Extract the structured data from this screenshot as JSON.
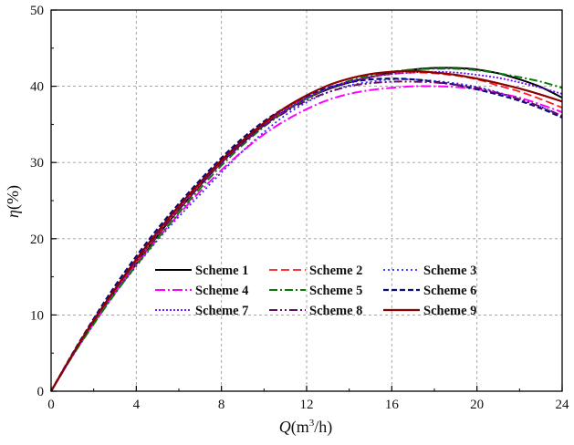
{
  "chart_data": {
    "type": "line",
    "title": "",
    "xlabel_italic": "Q",
    "xlabel_rest": "(m",
    "xlabel_sup": "3",
    "xlabel_tail": "/h)",
    "ylabel_italic": "η",
    "ylabel_rest": "(%)",
    "xlim": [
      0,
      24
    ],
    "ylim": [
      0,
      50
    ],
    "xticks": [
      0,
      4,
      8,
      12,
      16,
      20,
      24
    ],
    "yticks": [
      0,
      10,
      20,
      30,
      40,
      50
    ],
    "x": [
      0,
      1,
      2,
      3,
      4,
      5,
      6,
      7,
      8,
      9,
      10,
      11,
      12,
      13,
      14,
      15,
      16,
      17,
      18,
      19,
      20,
      21,
      22,
      23,
      24
    ],
    "grid": true,
    "legend_placement": "lower-center",
    "series": [
      {
        "name": "Scheme 1",
        "color": "#000000",
        "dash": "",
        "width": 2.0,
        "values": [
          0,
          4.7,
          9.0,
          13.0,
          16.7,
          20.4,
          23.8,
          27.0,
          30.0,
          32.6,
          34.9,
          36.8,
          38.4,
          39.6,
          40.5,
          41.2,
          41.8,
          42.2,
          42.4,
          42.4,
          42.2,
          41.7,
          40.9,
          39.9,
          38.5
        ]
      },
      {
        "name": "Scheme 2",
        "color": "#ff1a1a",
        "dash": "9,4",
        "width": 1.8,
        "values": [
          0,
          4.7,
          9.0,
          13.1,
          16.9,
          20.5,
          23.9,
          27.1,
          30.1,
          32.8,
          35.0,
          36.9,
          38.5,
          39.7,
          40.6,
          41.2,
          41.6,
          41.8,
          41.7,
          41.4,
          40.9,
          40.1,
          39.3,
          38.3,
          37.2
        ]
      },
      {
        "name": "Scheme 3",
        "color": "#2a2aff",
        "dash": "2,3",
        "width": 1.8,
        "values": [
          0,
          4.6,
          8.8,
          12.8,
          16.4,
          19.8,
          22.9,
          25.8,
          28.7,
          31.5,
          34.0,
          36.2,
          37.9,
          39.2,
          40.1,
          40.6,
          40.9,
          40.9,
          40.7,
          40.4,
          39.9,
          39.2,
          38.3,
          37.3,
          36.0
        ]
      },
      {
        "name": "Scheme 4",
        "color": "#ff00ff",
        "dash": "11,3,2,3",
        "width": 2.0,
        "values": [
          0,
          4.6,
          8.9,
          12.9,
          16.6,
          20.0,
          23.2,
          26.2,
          29.0,
          31.5,
          33.7,
          35.5,
          37.0,
          38.2,
          39.0,
          39.5,
          39.8,
          40.0,
          40.0,
          39.9,
          39.6,
          39.1,
          38.5,
          37.6,
          36.6
        ]
      },
      {
        "name": "Scheme 5",
        "color": "#0a7a0a",
        "dash": "9,3,2,3",
        "width": 2.0,
        "values": [
          0,
          4.6,
          8.8,
          12.8,
          16.5,
          20.0,
          23.4,
          26.6,
          29.6,
          32.3,
          34.7,
          36.7,
          38.4,
          39.7,
          40.7,
          41.4,
          41.9,
          42.2,
          42.3,
          42.3,
          42.1,
          41.7,
          41.2,
          40.6,
          39.8
        ]
      },
      {
        "name": "Scheme 6",
        "color": "#0a0a7a",
        "dash": "6,3",
        "width": 2.2,
        "values": [
          0,
          4.9,
          9.5,
          13.8,
          17.7,
          21.3,
          24.6,
          27.7,
          30.6,
          33.2,
          35.4,
          37.2,
          38.7,
          39.8,
          40.5,
          40.9,
          41.0,
          40.9,
          40.6,
          40.2,
          39.6,
          38.9,
          38.1,
          37.1,
          35.9
        ]
      },
      {
        "name": "Scheme 7",
        "color": "#6a00ff",
        "dash": "2,2",
        "width": 1.8,
        "values": [
          0,
          4.8,
          9.2,
          13.3,
          17.1,
          20.7,
          24.1,
          27.2,
          30.1,
          32.7,
          35.0,
          36.9,
          38.5,
          39.7,
          40.6,
          41.2,
          41.6,
          41.8,
          41.9,
          41.8,
          41.5,
          41.1,
          40.5,
          39.8,
          39.0
        ]
      },
      {
        "name": "Scheme 8",
        "color": "#6a0a6a",
        "dash": "9,3,2,3,2,3",
        "width": 2.0,
        "values": [
          0,
          4.8,
          9.2,
          13.3,
          17.1,
          20.6,
          23.9,
          27.0,
          29.9,
          32.5,
          34.8,
          36.6,
          38.1,
          39.2,
          40.0,
          40.4,
          40.6,
          40.6,
          40.5,
          40.2,
          39.8,
          39.1,
          38.3,
          37.3,
          36.1
        ]
      },
      {
        "name": "Scheme 9",
        "color": "#8b0000",
        "dash": "",
        "width": 2.2,
        "values": [
          0,
          4.8,
          9.3,
          13.4,
          17.3,
          20.9,
          24.3,
          27.4,
          30.3,
          32.9,
          35.2,
          37.2,
          38.8,
          40.1,
          41.0,
          41.6,
          41.9,
          42.0,
          41.8,
          41.5,
          41.0,
          40.4,
          39.7,
          38.9,
          38.0
        ]
      }
    ]
  }
}
